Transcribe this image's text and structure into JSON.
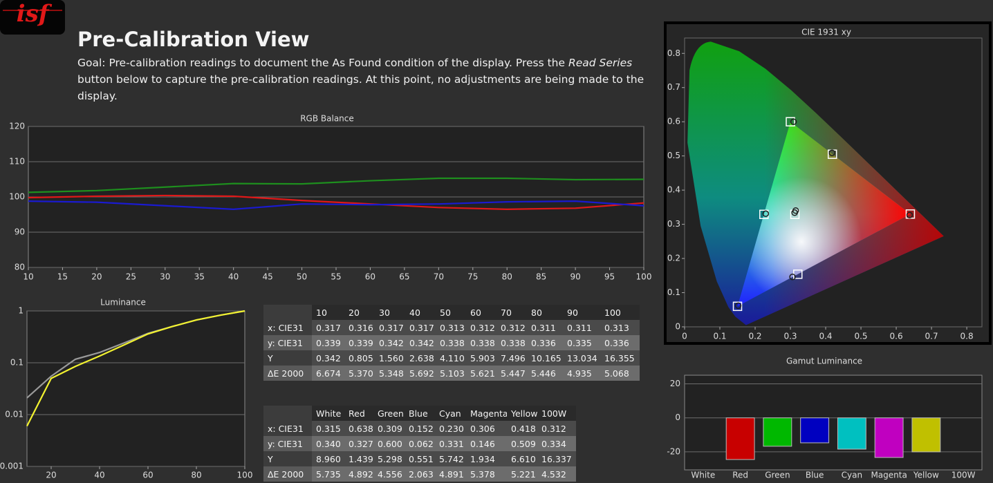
{
  "header": {
    "logo": "isf",
    "title": "Pre-Calibration View",
    "goal": [
      "Goal: Pre-calibration readings to document the As Found condition of the display. Press the ",
      "Read Series",
      " button below to capture the pre-calibration readings. At this point, no adjustments are being made to the display."
    ]
  },
  "chart_data": [
    {
      "type": "line",
      "title": "RGB Balance",
      "x": [
        10,
        20,
        30,
        40,
        50,
        60,
        70,
        80,
        90,
        100
      ],
      "series": [
        {
          "color": "#1e8f1e",
          "values": [
            101.3,
            101.8,
            102.8,
            103.8,
            103.7,
            104.6,
            105.3,
            105.3,
            104.9,
            105.0
          ]
        },
        {
          "color": "#e01818",
          "values": [
            99.8,
            100.2,
            100.4,
            100.2,
            99.0,
            98.0,
            97.0,
            96.5,
            96.8,
            98.3
          ]
        },
        {
          "color": "#1a1ad0",
          "values": [
            98.8,
            98.5,
            97.5,
            96.5,
            98.0,
            97.8,
            98.0,
            98.6,
            98.8,
            97.5
          ]
        }
      ],
      "xlim": [
        10,
        100
      ],
      "ylim": [
        80,
        120
      ],
      "xticks": [
        10,
        15,
        20,
        25,
        30,
        35,
        40,
        45,
        50,
        55,
        60,
        65,
        70,
        75,
        80,
        85,
        90,
        95,
        100
      ],
      "yticks": [
        80,
        90,
        100,
        110,
        120
      ],
      "grid": true
    },
    {
      "type": "line",
      "title": "Luminance",
      "x": [
        10,
        20,
        30,
        40,
        50,
        60,
        70,
        80,
        90,
        100
      ],
      "series": [
        {
          "color": "#9a9a9a",
          "values": [
            0.021,
            0.055,
            0.117,
            0.158,
            0.24,
            0.37,
            0.5,
            0.67,
            0.83,
            1
          ]
        },
        {
          "color": "#f2f230",
          "values": [
            0.006,
            0.05,
            0.085,
            0.135,
            0.22,
            0.36,
            0.5,
            0.67,
            0.83,
            1
          ]
        }
      ],
      "xlim": [
        10,
        100
      ],
      "ylim": [
        0.001,
        1
      ],
      "log_y": true,
      "xticks": [
        20,
        40,
        60,
        80,
        100
      ],
      "yticks": [
        0.001,
        0.01,
        0.1,
        1
      ],
      "grid": true
    },
    {
      "type": "scatter",
      "title": "CIE 1931 xy",
      "series": [
        {
          "marker": "square",
          "color": "#ffffff",
          "x": [
            0.3127,
            0.64,
            0.3,
            0.15,
            0.225,
            0.321,
            0.419
          ],
          "y": [
            0.329,
            0.33,
            0.6,
            0.06,
            0.329,
            0.154,
            0.505
          ]
        },
        {
          "marker": "circle",
          "color": "#202020",
          "x": [
            0.315,
            0.638,
            0.309,
            0.152,
            0.23,
            0.306,
            0.418,
            0.312
          ],
          "y": [
            0.34,
            0.327,
            0.6,
            0.062,
            0.331,
            0.146,
            0.509,
            0.334
          ]
        }
      ],
      "xlim": [
        0,
        0.843
      ],
      "ylim": [
        0,
        0.845
      ],
      "xticks": [
        0,
        0.1,
        0.2,
        0.3,
        0.4,
        0.5,
        0.6,
        0.7,
        0.8
      ],
      "yticks": [
        0,
        0.1,
        0.2,
        0.3,
        0.4,
        0.5,
        0.6,
        0.7,
        0.8
      ],
      "grid": false
    },
    {
      "type": "bar",
      "title": "Gamut Luminance",
      "categories": [
        "White",
        "Red",
        "Green",
        "Blue",
        "Cyan",
        "Magenta",
        "Yellow",
        "100W"
      ],
      "values": [
        null,
        -24.5,
        -16.7,
        -14.7,
        -18.4,
        -23.3,
        -20,
        null
      ],
      "colors": [
        null,
        "#c80000",
        "#00b800",
        "#0000c0",
        "#00c0c0",
        "#c000c0",
        "#c0c000",
        null
      ],
      "ylim": [
        -30.6,
        25.1
      ],
      "yticks": [
        -20,
        0,
        20
      ],
      "grid": true
    }
  ],
  "tables": [
    {
      "columns": [
        "10",
        "20",
        "30",
        "40",
        "50",
        "60",
        "70",
        "80",
        "90",
        "100"
      ],
      "rows": [
        {
          "label": "x: CIE31",
          "cells": [
            "0.317",
            "0.316",
            "0.317",
            "0.317",
            "0.313",
            "0.312",
            "0.312",
            "0.311",
            "0.311",
            "0.313"
          ]
        },
        {
          "label": "y: CIE31",
          "cells": [
            "0.339",
            "0.339",
            "0.342",
            "0.342",
            "0.338",
            "0.338",
            "0.338",
            "0.336",
            "0.335",
            "0.336"
          ]
        },
        {
          "label": "Y",
          "cells": [
            "0.342",
            "0.805",
            "1.560",
            "2.638",
            "4.110",
            "5.903",
            "7.496",
            "10.165",
            "13.034",
            "16.355"
          ]
        },
        {
          "label": "ΔE 2000",
          "cells": [
            "6.674",
            "5.370",
            "5.348",
            "5.692",
            "5.103",
            "5.621",
            "5.447",
            "5.446",
            "4.935",
            "5.068"
          ]
        }
      ]
    },
    {
      "columns": [
        "White",
        "Red",
        "Green",
        "Blue",
        "Cyan",
        "Magenta",
        "Yellow",
        "100W"
      ],
      "rows": [
        {
          "label": "x: CIE31",
          "cells": [
            "0.315",
            "0.638",
            "0.309",
            "0.152",
            "0.230",
            "0.306",
            "0.418",
            "0.312"
          ]
        },
        {
          "label": "y: CIE31",
          "cells": [
            "0.340",
            "0.327",
            "0.600",
            "0.062",
            "0.331",
            "0.146",
            "0.509",
            "0.334"
          ]
        },
        {
          "label": "Y",
          "cells": [
            "8.960",
            "1.439",
            "5.298",
            "0.551",
            "5.742",
            "1.934",
            "6.610",
            "16.337"
          ]
        },
        {
          "label": "ΔE 2000",
          "cells": [
            "5.735",
            "4.892",
            "4.556",
            "2.063",
            "4.891",
            "5.378",
            "5.221",
            "4.532"
          ]
        }
      ]
    }
  ]
}
